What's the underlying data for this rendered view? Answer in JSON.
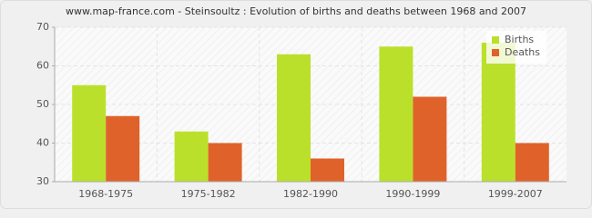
{
  "chart_data": {
    "type": "bar",
    "title": "www.map-france.com - Steinsoultz : Evolution of births and deaths between 1968 and 2007",
    "categories": [
      "1968-1975",
      "1975-1982",
      "1982-1990",
      "1990-1999",
      "1999-2007"
    ],
    "series": [
      {
        "name": "Births",
        "color": "#bbe02b",
        "values": [
          55,
          43,
          63,
          65,
          66
        ]
      },
      {
        "name": "Deaths",
        "color": "#e0622b",
        "values": [
          47,
          40,
          36,
          52,
          40
        ]
      }
    ],
    "ylim": [
      30,
      70
    ],
    "yticks": [
      30,
      40,
      50,
      60,
      70
    ],
    "grid": true,
    "legend": "top-right"
  }
}
